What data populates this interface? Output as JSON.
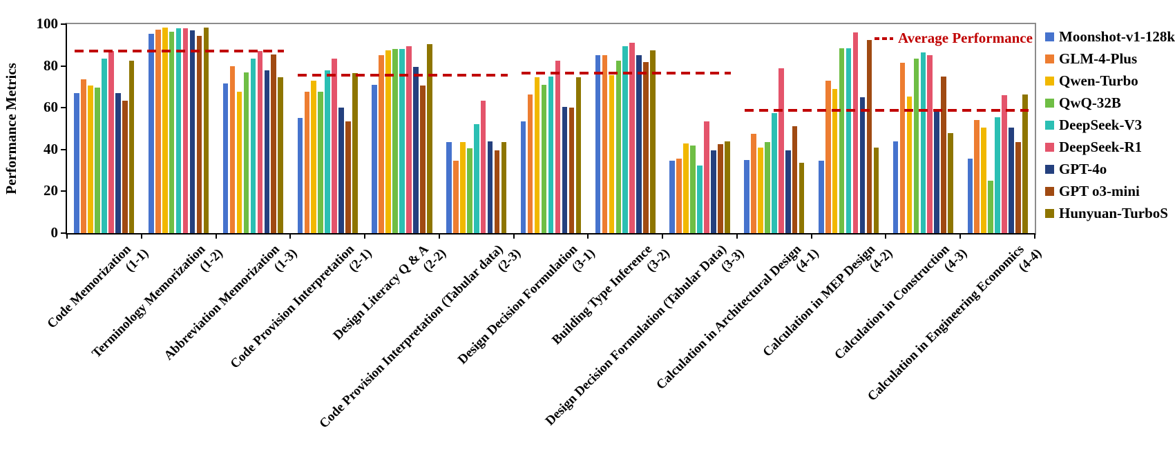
{
  "chart_data": {
    "type": "bar",
    "title": "",
    "ylabel": "Performance Metrics",
    "xlabel": "",
    "ylim": [
      0,
      100
    ],
    "yticks": [
      0,
      20,
      40,
      60,
      80,
      100
    ],
    "grid": false,
    "legend_position": "right",
    "categories": [
      {
        "label": "Code Memorization",
        "code": "(1-1)"
      },
      {
        "label": "Terminology Memorization",
        "code": "(1-2)"
      },
      {
        "label": "Abbreviation Memorization",
        "code": "(1-3)"
      },
      {
        "label": "Code Provision Interpretation",
        "code": "(2-1)"
      },
      {
        "label": "Design Literacy Q & A",
        "code": "(2-2)"
      },
      {
        "label": "Code Provision Interpretation (Tabular data)",
        "code": "(2-3)"
      },
      {
        "label": "Design Decision Formulation",
        "code": "(3-1)"
      },
      {
        "label": "Building Type Inference",
        "code": "(3-2)"
      },
      {
        "label": "Design Decision Formulation (Tabular Data)",
        "code": "(3-3)"
      },
      {
        "label": "Calculation in Architectural Design",
        "code": "(4-1)"
      },
      {
        "label": "Calculation in MEP Design",
        "code": "(4-2)"
      },
      {
        "label": "Calculation in Construction",
        "code": "(4-3)"
      },
      {
        "label": "Calculation in Engineering Economics",
        "code": "(4-4)"
      }
    ],
    "series": [
      {
        "name": "Moonshot-v1-128k",
        "color": "#4673CD",
        "values": [
          67,
          95.5,
          71.5,
          55,
          71,
          43.5,
          53.5,
          85,
          34.5,
          35,
          34.5,
          44,
          35.5
        ]
      },
      {
        "name": "GLM-4-Plus",
        "color": "#ED7D31",
        "values": [
          73.5,
          97.5,
          80,
          67.5,
          85,
          34.5,
          66.5,
          85,
          35.5,
          47.5,
          73,
          81.5,
          54
        ]
      },
      {
        "name": "Qwen-Turbo",
        "color": "#F1B800",
        "values": [
          70.5,
          98.5,
          67.5,
          73,
          87.5,
          43.5,
          74.5,
          75.5,
          43,
          41,
          69,
          65.5,
          50.5
        ]
      },
      {
        "name": "QwQ-32B",
        "color": "#6FBE45",
        "values": [
          69.5,
          96.5,
          77,
          67.5,
          88,
          40.5,
          71,
          82.5,
          42,
          43.5,
          88.5,
          83.5,
          25
        ]
      },
      {
        "name": "DeepSeek-V3",
        "color": "#2BBFB3",
        "values": [
          83.5,
          98,
          83.5,
          78,
          88,
          52,
          75,
          89.5,
          32.5,
          57.5,
          88.5,
          86.5,
          55.5
        ]
      },
      {
        "name": "DeepSeek-R1",
        "color": "#E4546B",
        "values": [
          87,
          98,
          87,
          83.5,
          89.5,
          63.5,
          82.5,
          91,
          53.5,
          79,
          96,
          85,
          66
        ]
      },
      {
        "name": "GPT-4o",
        "color": "#24407E",
        "values": [
          67,
          97,
          78,
          60,
          79.5,
          44,
          60.5,
          85,
          39.5,
          39.5,
          65,
          58.5,
          50.5
        ]
      },
      {
        "name": "GPT o3-mini",
        "color": "#A04A12",
        "values": [
          63.5,
          94.5,
          85.5,
          53.5,
          70.5,
          39.5,
          60,
          82,
          42.5,
          51,
          92.5,
          75,
          43.5
        ]
      },
      {
        "name": "Hunyuan-TurboS",
        "color": "#8E7500",
        "values": [
          82.5,
          98.5,
          74.5,
          76.5,
          90.5,
          43.5,
          74.5,
          87.5,
          44,
          33.5,
          41,
          48,
          66.5
        ]
      }
    ],
    "average_lines": [
      {
        "value": 87,
        "from_category": 0,
        "to_category": 2
      },
      {
        "value": 75.5,
        "from_category": 3,
        "to_category": 5
      },
      {
        "value": 76.5,
        "from_category": 6,
        "to_category": 8
      },
      {
        "value": 58.7,
        "from_category": 9,
        "to_category": 12
      }
    ],
    "annotation": {
      "label": "Average Performance",
      "color": "#C00000"
    },
    "line_color": "#C00000"
  }
}
